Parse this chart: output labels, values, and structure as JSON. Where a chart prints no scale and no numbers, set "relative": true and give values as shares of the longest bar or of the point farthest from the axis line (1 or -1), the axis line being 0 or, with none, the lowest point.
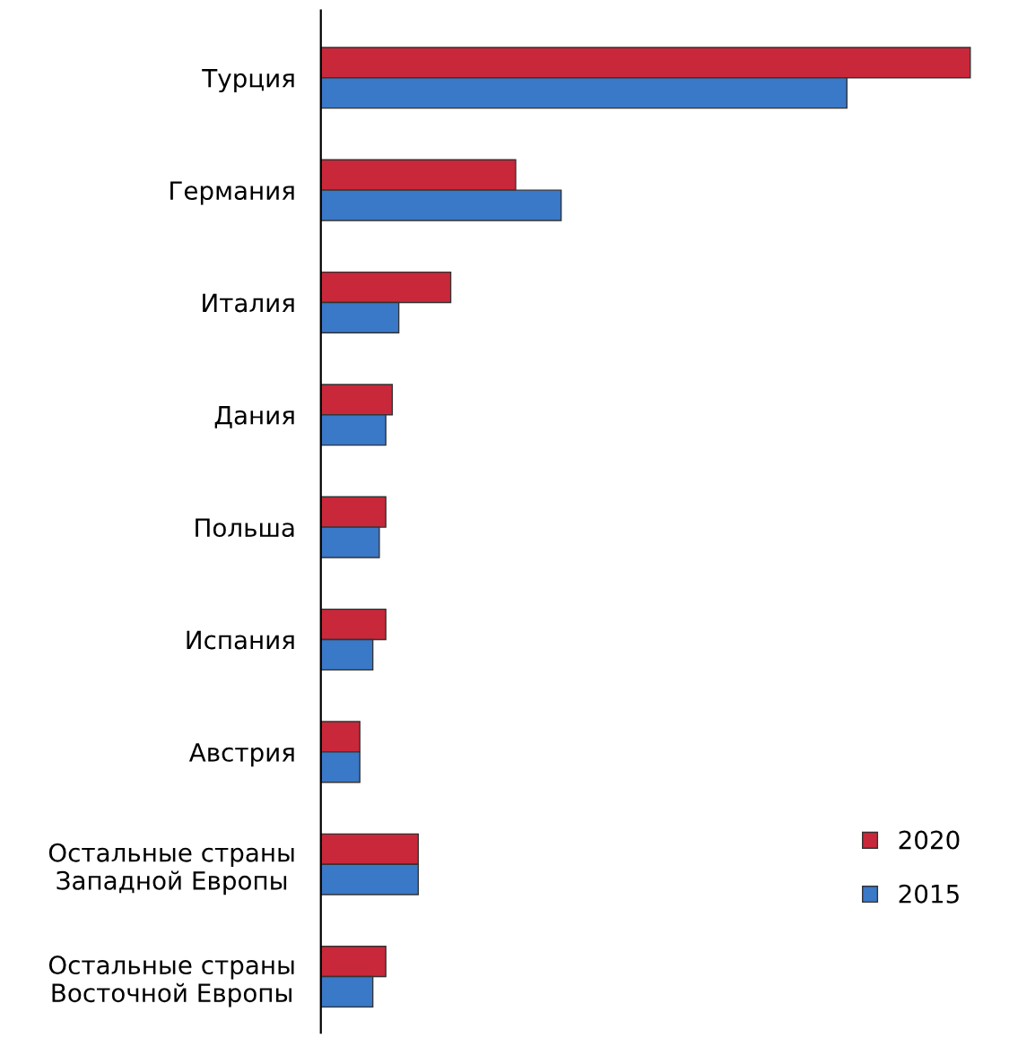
{
  "chart_data": {
    "type": "bar",
    "orientation": "horizontal",
    "relative": true,
    "legend": "bottom right",
    "grid": false,
    "categories": [
      "Турция",
      "Германия",
      "Италия",
      "Дания",
      "Польша",
      "Испания",
      "Австрия",
      "Остальные страны\nЗападной Европы",
      "Остальные страны\nВосточной Европы"
    ],
    "series": [
      {
        "name": "2020",
        "color": "#c8283a",
        "values": [
          1,
          0.3,
          0.2,
          0.11,
          0.1,
          0.1,
          0.06,
          0.15,
          0.1
        ]
      },
      {
        "name": "2015",
        "color": "#3a78c8",
        "values": [
          0.81,
          0.37,
          0.12,
          0.1,
          0.09,
          0.08,
          0.06,
          0.15,
          0.08
        ]
      }
    ]
  }
}
